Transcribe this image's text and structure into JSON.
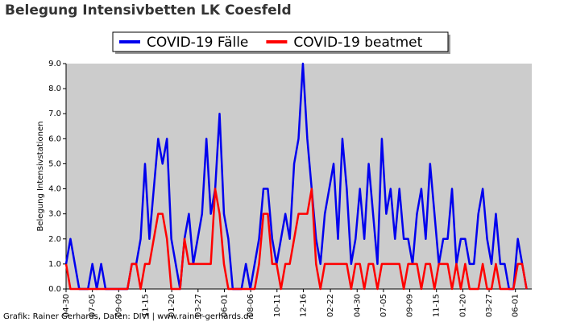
{
  "chart_data": {
    "type": "line",
    "title": "Belegung Intensivbetten LK Coesfeld",
    "y_label": "Belegung Intensivstationen",
    "footer": "Grafik: Rainer Gerhards, Daten: DIVI | www.rainer-gerhards.de",
    "x": [
      0,
      11,
      22,
      33,
      44,
      55,
      66,
      77,
      88,
      99,
      110,
      121,
      132,
      143,
      154,
      165,
      176,
      187,
      198,
      209,
      220,
      231,
      242,
      253,
      264,
      275,
      286,
      297,
      308,
      319,
      330,
      341,
      352,
      363,
      374,
      385,
      396,
      407,
      418,
      429,
      440,
      451,
      462,
      473,
      484,
      495,
      506,
      517,
      528,
      539,
      550,
      561,
      572,
      583,
      594,
      605,
      616,
      627,
      638,
      649,
      660,
      671,
      682,
      693,
      704,
      715,
      726,
      737,
      748,
      759,
      770,
      781,
      792,
      803,
      814,
      825,
      836,
      847,
      858,
      869,
      880,
      891,
      902,
      913,
      924,
      935,
      946,
      957,
      968,
      979,
      990,
      1001,
      1012,
      1023,
      1034,
      1045,
      1056,
      1067,
      1078,
      1089,
      1100,
      1111,
      1122,
      1133,
      1144,
      1155
    ],
    "series": [
      {
        "name": "COVID-19 Fälle",
        "color": "#0000ee",
        "values": [
          1,
          2,
          1,
          0,
          0,
          0,
          1,
          0,
          1,
          0,
          0,
          0,
          0,
          0,
          0,
          1,
          1,
          2,
          5,
          2,
          4,
          6,
          5,
          6,
          2,
          1,
          0,
          2,
          3,
          1,
          2,
          3,
          6,
          3,
          4,
          7,
          3,
          2,
          0,
          0,
          0,
          1,
          0,
          1,
          2,
          4,
          4,
          2,
          1,
          2,
          3,
          2,
          5,
          6,
          9,
          6,
          4,
          2,
          1,
          3,
          4,
          5,
          2,
          6,
          4,
          1,
          2,
          4,
          2,
          5,
          3,
          1,
          6,
          3,
          4,
          2,
          4,
          2,
          2,
          1,
          3,
          4,
          2,
          5,
          3,
          1,
          2,
          2,
          4,
          1,
          2,
          2,
          1,
          1,
          3,
          4,
          2,
          1,
          3,
          1,
          1,
          0,
          0,
          2,
          1,
          0
        ]
      },
      {
        "name": "COVID-19 beatmet",
        "color": "#ff0000",
        "values": [
          1,
          0,
          0,
          0,
          0,
          0,
          0,
          0,
          0,
          0,
          0,
          0,
          0,
          0,
          0,
          1,
          1,
          0,
          1,
          1,
          2,
          3,
          3,
          2,
          0,
          0,
          0,
          2,
          1,
          1,
          1,
          1,
          1,
          1,
          4,
          3,
          1,
          0,
          0,
          0,
          0,
          0,
          0,
          0,
          1,
          3,
          3,
          1,
          1,
          0,
          1,
          1,
          2,
          3,
          3,
          3,
          4,
          1,
          0,
          1,
          1,
          1,
          1,
          1,
          1,
          0,
          1,
          1,
          0,
          1,
          1,
          0,
          1,
          1,
          1,
          1,
          1,
          0,
          1,
          1,
          1,
          0,
          1,
          1,
          0,
          1,
          1,
          1,
          0,
          1,
          0,
          1,
          0,
          0,
          0,
          1,
          0,
          0,
          1,
          0,
          0,
          0,
          0,
          1,
          1,
          0
        ]
      }
    ],
    "xlim": [
      0,
      1168
    ],
    "xticks": [
      {
        "value": 0,
        "label": "04-30"
      },
      {
        "value": 66,
        "label": "07-05"
      },
      {
        "value": 132,
        "label": "09-09"
      },
      {
        "value": 199,
        "label": "11-15"
      },
      {
        "value": 265,
        "label": "01-20"
      },
      {
        "value": 331,
        "label": "03-27"
      },
      {
        "value": 397,
        "label": "06-01"
      },
      {
        "value": 463,
        "label": "08-06"
      },
      {
        "value": 529,
        "label": "10-11"
      },
      {
        "value": 595,
        "label": "12-16"
      },
      {
        "value": 663,
        "label": "02-22"
      },
      {
        "value": 730,
        "label": "04-30"
      },
      {
        "value": 796,
        "label": "07-05"
      },
      {
        "value": 862,
        "label": "09-09"
      },
      {
        "value": 929,
        "label": "11-15"
      },
      {
        "value": 995,
        "label": "01-20"
      },
      {
        "value": 1061,
        "label": "03-27"
      },
      {
        "value": 1127,
        "label": "06-01"
      }
    ],
    "ylim": [
      0,
      9
    ],
    "yticks": [
      {
        "value": 0,
        "label": "0.0"
      },
      {
        "value": 1,
        "label": "1.0"
      },
      {
        "value": 2,
        "label": "2.0"
      },
      {
        "value": 3,
        "label": "3.0"
      },
      {
        "value": 4,
        "label": "4.0"
      },
      {
        "value": 5,
        "label": "5.0"
      },
      {
        "value": 6,
        "label": "6.0"
      },
      {
        "value": 7,
        "label": "7.0"
      },
      {
        "value": 8,
        "label": "8.0"
      },
      {
        "value": 9,
        "label": "9.0"
      }
    ],
    "plot_background": "#cccccc",
    "legend": "top"
  }
}
